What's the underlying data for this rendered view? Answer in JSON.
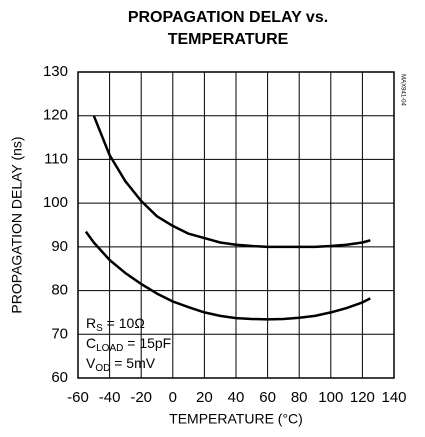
{
  "chart_data": {
    "type": "line",
    "title": [
      "PROPAGATION DELAY vs.",
      "TEMPERATURE"
    ],
    "x_label": "TEMPERATURE (°C)",
    "y_label": "PROPAGATION DELAY (ns)",
    "figure_id": "MAX941-04",
    "annotations": [
      {
        "main": "R",
        "sub": "S",
        "rest": " = 10Ω"
      },
      {
        "main": "C",
        "sub": "LOAD",
        "rest": " = 15pF"
      },
      {
        "main": "V",
        "sub": "OD",
        "rest": " = 5mV"
      }
    ],
    "xlim": [
      -60,
      140
    ],
    "xticks": [
      -60,
      -40,
      -20,
      0,
      20,
      40,
      60,
      80,
      100,
      120,
      140
    ],
    "ylim": [
      60,
      130
    ],
    "yticks": [
      60,
      70,
      80,
      90,
      100,
      110,
      120,
      130
    ],
    "grid": true,
    "series": [
      {
        "color": "#000000",
        "x": [
          -50,
          -40,
          -30,
          -20,
          -10,
          0,
          10,
          20,
          30,
          40,
          50,
          60,
          70,
          80,
          90,
          100,
          110,
          120,
          125
        ],
        "values": [
          120,
          111,
          105,
          100.5,
          97,
          94.8,
          93,
          92,
          91,
          90.5,
          90.2,
          90,
          90,
          90,
          90,
          90.2,
          90.5,
          91,
          91.5
        ]
      },
      {
        "color": "#000000",
        "x": [
          -55,
          -50,
          -40,
          -30,
          -20,
          -10,
          0,
          10,
          20,
          30,
          40,
          50,
          60,
          70,
          80,
          90,
          100,
          110,
          120,
          125
        ],
        "values": [
          93.5,
          91,
          87,
          84,
          81.5,
          79.3,
          77.5,
          76.2,
          75,
          74.2,
          73.7,
          73.5,
          73.4,
          73.5,
          73.8,
          74.2,
          75,
          76,
          77.3,
          78.2
        ]
      }
    ]
  }
}
